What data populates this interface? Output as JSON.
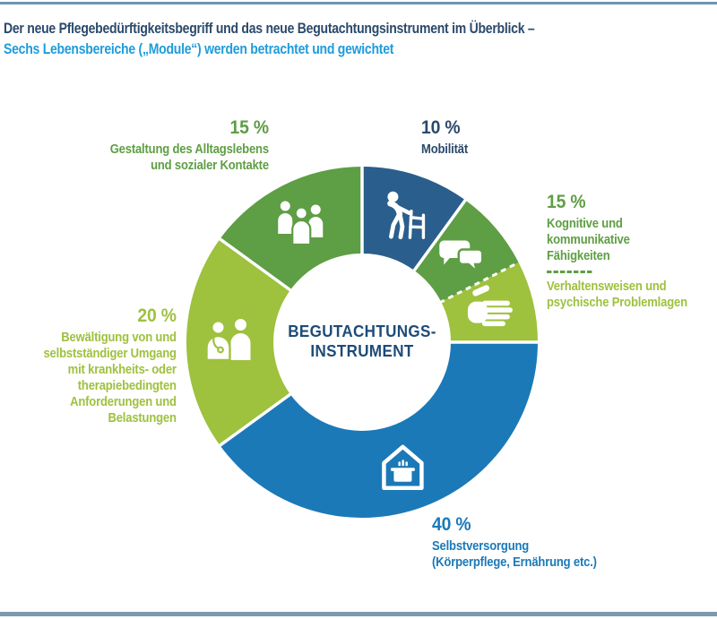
{
  "page": {
    "title_line1": "Der neue Pflegebedürftigkeitsbegriff und das neue Begutachtungsinstrument im Überblick –",
    "title_line2": "Sechs Lebensbereiche („Module“) werden betrachtet und gewichtet",
    "colors": {
      "navy": "#2b4a6b",
      "center_navy": "#1d4b78",
      "title_blue": "#1e9cdc",
      "rule_top": "#6e94b3",
      "rule_bottom": "#7d9aad"
    }
  },
  "chart_data": {
    "type": "pie",
    "subtype": "donut",
    "start_angle_deg": 0,
    "direction": "clockwise",
    "center_label": "BEGUTACHTUNGS-\nINSTRUMENT",
    "colors": {
      "dark_blue": "#2a5e8c",
      "green": "#5e9e44",
      "light_green": "#9ec13e",
      "blue": "#1b79b8"
    },
    "slices": [
      {
        "id": "mobilitaet",
        "label": "Mobilität",
        "percent": "10 %",
        "value": 10,
        "color_key": "dark_blue",
        "icon": "person-with-walker-icon"
      },
      {
        "id": "kognitive",
        "label": "Kognitive und kommunikative Fähigkeiten",
        "shared_percent": "15 %",
        "value": 7.5,
        "color_key": "green",
        "icon": "speech-bubbles-icon"
      },
      {
        "id": "verhaltensweisen",
        "label": "Verhaltensweisen und psychische Problemlagen",
        "shared_percent": "15 %",
        "value": 7.5,
        "color_key": "light_green",
        "icon": "flat-hand-icon",
        "divider_before": "dashed"
      },
      {
        "id": "selbstversorgung",
        "label": "Selbstversorgung (Körperpflege, Ernährung etc.)",
        "percent": "40 %",
        "value": 40,
        "color_key": "blue",
        "icon": "house-cooking-pot-icon"
      },
      {
        "id": "bewaeltigung",
        "label": "Bewältigung von und selbstständiger Umgang mit krankheits- oder therapiebedingten Anforderungen und Belastungen",
        "percent": "20 %",
        "value": 20,
        "color_key": "light_green",
        "icon": "doctor-patient-icon"
      },
      {
        "id": "gestaltung",
        "label": "Gestaltung des Alltagslebens und sozialer Kontakte",
        "percent": "15 %",
        "value": 15,
        "color_key": "green",
        "icon": "people-group-icon"
      }
    ]
  },
  "callouts": {
    "mobilitaet": {
      "percent": "10 %",
      "text": "Mobilität"
    },
    "kognitive": {
      "percent": "15 %",
      "text_top": "Kognitive und kommunikative\nFähigkeiten",
      "text_bottom": "Verhaltensweisen und\npsychische Problemlagen"
    },
    "gestaltung": {
      "percent": "15 %",
      "text": "Gestaltung des Alltagslebens\nund sozialer Kontakte"
    },
    "bewaeltigung": {
      "percent": "20 %",
      "text": "Bewältigung von und\nselbstständiger Umgang\nmit krankheits- oder\ntherapiebedingten\nAnforderungen und\nBelastungen"
    },
    "selbstversorgung": {
      "percent": "40 %",
      "text": "Selbstversorgung\n(Körperpflege, Ernährung etc.)"
    }
  }
}
